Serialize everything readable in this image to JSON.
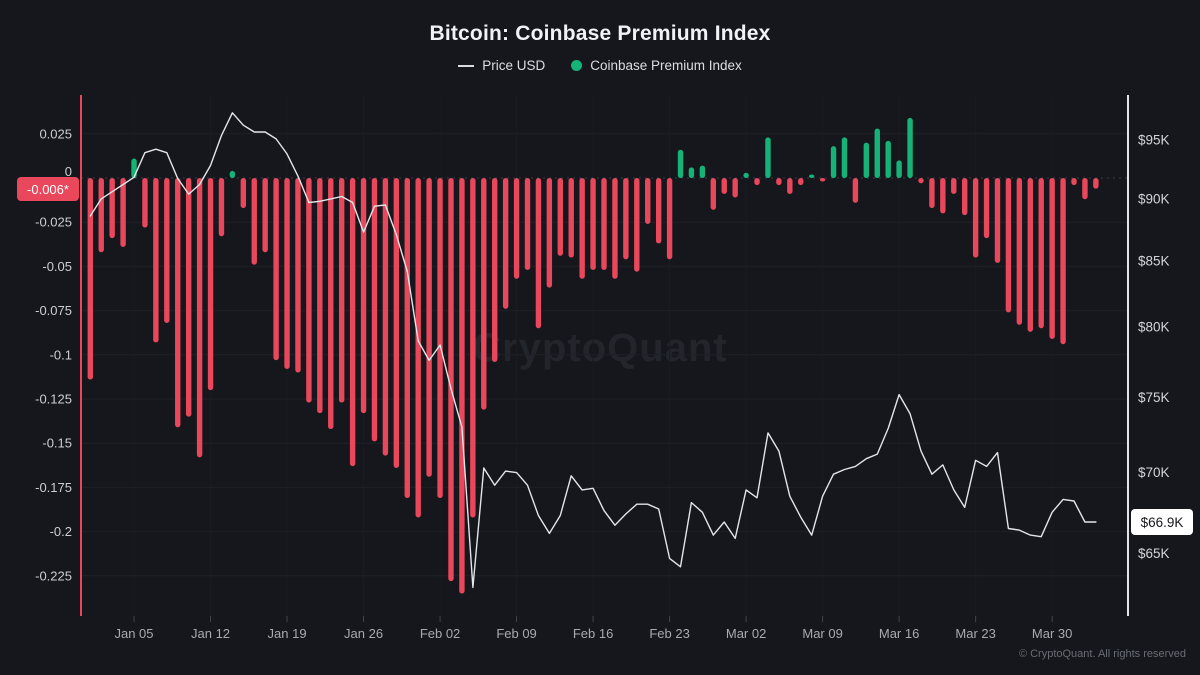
{
  "title": "Bitcoin: Coinbase Premium Index",
  "legend": {
    "price_label": "Price USD",
    "premium_label": "Coinbase Premium Index"
  },
  "watermark": "CryptoQuant",
  "copyright": "© CryptoQuant. All rights reserved",
  "badges": {
    "premium_current": "-0.006*",
    "price_current": "$66.9K"
  },
  "colors": {
    "background": "#16171c",
    "bar_negative": "#e8475c",
    "bar_positive": "#16b378",
    "price_line": "#e4e5e9",
    "left_axis_line": "#e8475c",
    "right_axis_line": "#e4e5e9",
    "gridline": "#1e2026",
    "zero_line": "#3c3e46",
    "axis_label": "#ccced4",
    "x_label": "#a7aab1",
    "premium_badge_bg": "#e8475c",
    "price_badge_bg": "#ffffff"
  },
  "chart_data": {
    "type": "bar+line",
    "title": "Bitcoin: Coinbase Premium Index",
    "x": [
      "Jan 01",
      "Jan 02",
      "Jan 03",
      "Jan 04",
      "Jan 05",
      "Jan 06",
      "Jan 07",
      "Jan 08",
      "Jan 09",
      "Jan 10",
      "Jan 11",
      "Jan 12",
      "Jan 13",
      "Jan 14",
      "Jan 15",
      "Jan 16",
      "Jan 17",
      "Jan 18",
      "Jan 19",
      "Jan 20",
      "Jan 21",
      "Jan 22",
      "Jan 23",
      "Jan 24",
      "Jan 25",
      "Jan 26",
      "Jan 27",
      "Jan 28",
      "Jan 29",
      "Jan 30",
      "Jan 31",
      "Feb 01",
      "Feb 02",
      "Feb 03",
      "Feb 04",
      "Feb 05",
      "Feb 06",
      "Feb 07",
      "Feb 08",
      "Feb 09",
      "Feb 10",
      "Feb 11",
      "Feb 12",
      "Feb 13",
      "Feb 14",
      "Feb 15",
      "Feb 16",
      "Feb 17",
      "Feb 18",
      "Feb 19",
      "Feb 20",
      "Feb 21",
      "Feb 22",
      "Feb 23",
      "Feb 24",
      "Feb 25",
      "Feb 26",
      "Feb 27",
      "Feb 28",
      "Mar 01",
      "Mar 02",
      "Mar 03",
      "Mar 04",
      "Mar 05",
      "Mar 06",
      "Mar 07",
      "Mar 08",
      "Mar 09",
      "Mar 10",
      "Mar 11",
      "Mar 12",
      "Mar 13",
      "Mar 14",
      "Mar 15",
      "Mar 16",
      "Mar 17",
      "Mar 18",
      "Mar 19",
      "Mar 20",
      "Mar 21",
      "Mar 22",
      "Mar 23",
      "Mar 24",
      "Mar 25",
      "Mar 26",
      "Mar 27",
      "Mar 28",
      "Mar 29",
      "Mar 30",
      "Mar 31",
      "Apr 01",
      "Apr 02",
      "Apr 03"
    ],
    "x_tick_labels": [
      "Jan 05",
      "Jan 12",
      "Jan 19",
      "Jan 26",
      "Feb 02",
      "Feb 09",
      "Feb 16",
      "Feb 23",
      "Mar 02",
      "Mar 09",
      "Mar 16",
      "Mar 23",
      "Mar 30"
    ],
    "x_tick_indices": [
      4,
      11,
      18,
      25,
      32,
      39,
      46,
      53,
      60,
      67,
      74,
      81,
      88
    ],
    "series": [
      {
        "name": "Coinbase Premium Index",
        "type": "bar",
        "axis": "left",
        "positive_color": "#16b378",
        "negative_color": "#e8475c",
        "current_value": -0.006,
        "values": [
          -0.114,
          -0.042,
          -0.034,
          -0.039,
          0.011,
          -0.028,
          -0.093,
          -0.082,
          -0.141,
          -0.135,
          -0.158,
          -0.12,
          -0.033,
          0.004,
          -0.017,
          -0.049,
          -0.042,
          -0.103,
          -0.108,
          -0.11,
          -0.127,
          -0.133,
          -0.142,
          -0.127,
          -0.163,
          -0.133,
          -0.149,
          -0.157,
          -0.164,
          -0.181,
          -0.192,
          -0.169,
          -0.181,
          -0.228,
          -0.235,
          -0.192,
          -0.131,
          -0.104,
          -0.074,
          -0.057,
          -0.052,
          -0.085,
          -0.062,
          -0.044,
          -0.045,
          -0.057,
          -0.052,
          -0.052,
          -0.057,
          -0.046,
          -0.053,
          -0.026,
          -0.037,
          -0.046,
          0.016,
          0.006,
          0.007,
          -0.018,
          -0.009,
          -0.011,
          0.003,
          -0.004,
          0.023,
          -0.004,
          -0.009,
          -0.004,
          0.002,
          -0.002,
          0.018,
          0.023,
          -0.014,
          0.02,
          0.028,
          0.021,
          0.01,
          0.034,
          -0.003,
          -0.017,
          -0.02,
          -0.009,
          -0.021,
          -0.045,
          -0.034,
          -0.048,
          -0.076,
          -0.083,
          -0.087,
          -0.085,
          -0.091,
          -0.094,
          -0.004,
          -0.012,
          -0.006
        ]
      },
      {
        "name": "Price USD",
        "type": "line",
        "axis": "right",
        "color": "#e4e5e9",
        "unit": "USD thousands",
        "current_value_k": 66.9,
        "values_k": [
          88.6,
          90.0,
          90.6,
          91.2,
          91.8,
          93.9,
          94.2,
          93.9,
          91.7,
          90.4,
          91.2,
          92.8,
          95.4,
          97.4,
          96.3,
          95.7,
          95.7,
          95.1,
          93.8,
          91.9,
          89.7,
          89.8,
          90.0,
          90.2,
          89.7,
          87.3,
          89.4,
          89.5,
          87.1,
          84.2,
          79.0,
          77.6,
          78.7,
          75.6,
          73.0,
          63.0,
          70.3,
          69.2,
          70.1,
          70.0,
          69.2,
          67.3,
          66.2,
          67.3,
          69.8,
          68.9,
          69.0,
          67.6,
          66.7,
          67.4,
          68.0,
          68.0,
          67.7,
          64.7,
          64.2,
          68.1,
          67.5,
          66.1,
          66.9,
          65.9,
          68.9,
          68.4,
          72.6,
          71.4,
          68.5,
          67.2,
          66.1,
          68.5,
          69.9,
          70.2,
          70.4,
          70.9,
          71.2,
          72.9,
          75.2,
          73.9,
          71.4,
          69.9,
          70.5,
          68.9,
          67.8,
          70.8,
          70.4,
          71.3,
          66.5,
          66.4,
          66.1,
          66.0,
          67.5,
          68.3,
          68.2,
          66.9,
          66.9
        ]
      }
    ],
    "left_axis": {
      "ticks": [
        0.025,
        0,
        -0.025,
        -0.05,
        -0.075,
        -0.1,
        -0.125,
        -0.15,
        -0.175,
        -0.2,
        -0.225
      ],
      "tick_labels": [
        "0.025",
        "0",
        "-0.025",
        "-0.05",
        "-0.075",
        "-0.1",
        "-0.125",
        "-0.15",
        "-0.175",
        "-0.2",
        "-0.225"
      ],
      "ylim": [
        -0.248,
        0.047
      ],
      "grid": true
    },
    "right_axis": {
      "ticks_k": [
        95,
        90,
        85,
        80,
        75,
        70,
        65
      ],
      "tick_labels": [
        "$95K",
        "$90K",
        "$85K",
        "$80K",
        "$75K",
        "$70K",
        "$65K"
      ],
      "scale": "log",
      "domain_k": [
        61.4,
        99.0
      ]
    },
    "legend_position": "top-center"
  }
}
